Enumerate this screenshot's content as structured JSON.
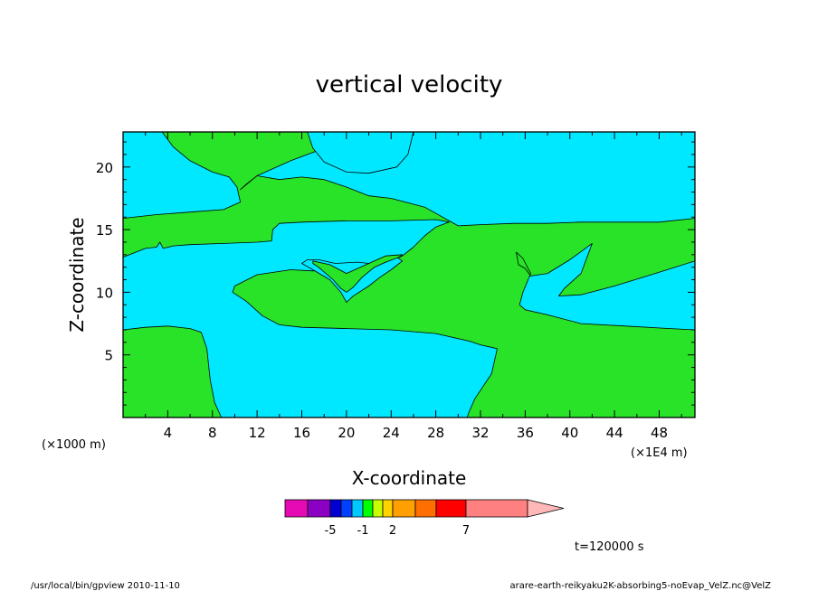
{
  "chart_data": {
    "type": "contour",
    "title": "vertical velocity",
    "xlabel": "X-coordinate",
    "ylabel": "Z-coordinate",
    "x_unit_left": "(×1000 m)",
    "x_unit_right": "(×1E4 m)",
    "xlim": [
      0,
      51.2
    ],
    "ylim": [
      0,
      22.8
    ],
    "x_ticks": [
      4,
      8,
      12,
      16,
      20,
      24,
      28,
      32,
      36,
      40,
      44,
      48
    ],
    "y_ticks": [
      5,
      10,
      15,
      20
    ],
    "background_color": "#00e8ff",
    "regions": [
      {
        "color": "#28e328",
        "points": [
          [
            3.5,
            22.8
          ],
          [
            4.5,
            21.6
          ],
          [
            6,
            20.5
          ],
          [
            8,
            19.6
          ],
          [
            9.5,
            19.2
          ],
          [
            10.2,
            18.4
          ],
          [
            10.5,
            17.2
          ],
          [
            9,
            16.6
          ],
          [
            6,
            16.4
          ],
          [
            3,
            16.2
          ],
          [
            0,
            15.9
          ],
          [
            0,
            12.8
          ],
          [
            2,
            13.5
          ],
          [
            3,
            13.6
          ],
          [
            3.3,
            14
          ],
          [
            3.6,
            13.5
          ],
          [
            4.5,
            13.7
          ],
          [
            6,
            13.8
          ],
          [
            9,
            13.9
          ],
          [
            12,
            14
          ],
          [
            13.3,
            14.1
          ],
          [
            13.4,
            15
          ],
          [
            14,
            15.5
          ],
          [
            16,
            15.6
          ],
          [
            20,
            15.7
          ],
          [
            24,
            15.7
          ],
          [
            28,
            15.8
          ],
          [
            29.2,
            15.6
          ],
          [
            28,
            15.2
          ],
          [
            27,
            14.5
          ],
          [
            26,
            13.6
          ],
          [
            25,
            12.9
          ],
          [
            24.2,
            12.6
          ],
          [
            23,
            12.4
          ],
          [
            21,
            12.1
          ],
          [
            19,
            11.9
          ],
          [
            17,
            11.7
          ],
          [
            15,
            11.8
          ],
          [
            12,
            11.4
          ],
          [
            10,
            10.5
          ],
          [
            9.8,
            10
          ],
          [
            11,
            9.3
          ],
          [
            12.5,
            8.1
          ],
          [
            14,
            7.4
          ],
          [
            16,
            7.2
          ],
          [
            20,
            7.1
          ],
          [
            24,
            7
          ],
          [
            28,
            6.7
          ],
          [
            31,
            6.1
          ],
          [
            32,
            5.8
          ],
          [
            33.5,
            5.5
          ],
          [
            33,
            3.5
          ],
          [
            31.5,
            1.5
          ],
          [
            31,
            0.5
          ],
          [
            30.8,
            0
          ],
          [
            51.2,
            0
          ],
          [
            51.2,
            7
          ],
          [
            49,
            7.1
          ],
          [
            45,
            7.3
          ],
          [
            41,
            7.5
          ],
          [
            38,
            8.2
          ],
          [
            36,
            8.6
          ],
          [
            35.5,
            9
          ],
          [
            35.8,
            10
          ],
          [
            36.5,
            11.5
          ],
          [
            35.8,
            12.7
          ],
          [
            35.2,
            13.2
          ],
          [
            35.4,
            12.2
          ],
          [
            36,
            11.9
          ],
          [
            36.5,
            11.3
          ],
          [
            38,
            11.5
          ],
          [
            40,
            12.6
          ],
          [
            42,
            13.9
          ],
          [
            41,
            11.5
          ],
          [
            39.5,
            10.3
          ],
          [
            39,
            9.7
          ],
          [
            41,
            9.8
          ],
          [
            44,
            10.5
          ],
          [
            48,
            11.6
          ],
          [
            51.2,
            12.5
          ],
          [
            51.2,
            15.9
          ],
          [
            48,
            15.6
          ],
          [
            44,
            15.6
          ],
          [
            41,
            15.6
          ],
          [
            38,
            15.5
          ],
          [
            35,
            15.5
          ],
          [
            32,
            15.4
          ],
          [
            30,
            15.3
          ],
          [
            27,
            16.8
          ],
          [
            24,
            17.5
          ],
          [
            22,
            17.7
          ],
          [
            20,
            18.4
          ],
          [
            18,
            19
          ],
          [
            16,
            19.2
          ],
          [
            14,
            19
          ],
          [
            12,
            19.3
          ],
          [
            10.5,
            18.2
          ],
          [
            11,
            18.6
          ],
          [
            12,
            19.3
          ],
          [
            15,
            20.5
          ],
          [
            18,
            21.5
          ],
          [
            21,
            22.3
          ],
          [
            23,
            22.8
          ]
        ]
      },
      {
        "color": "#00e8ff",
        "points": [
          [
            16.5,
            22.8
          ],
          [
            17,
            21.5
          ],
          [
            18,
            20.4
          ],
          [
            20,
            19.6
          ],
          [
            22,
            19.5
          ],
          [
            24.5,
            20
          ],
          [
            25.5,
            21
          ],
          [
            26,
            22.8
          ]
        ]
      },
      {
        "color": "#28e328",
        "points": [
          [
            0,
            7
          ],
          [
            2,
            7.2
          ],
          [
            4,
            7.3
          ],
          [
            6,
            7.1
          ],
          [
            7,
            6.8
          ],
          [
            7.5,
            5.5
          ],
          [
            7.8,
            3
          ],
          [
            8.2,
            1.2
          ],
          [
            8.6,
            0.4
          ],
          [
            8.8,
            0
          ],
          [
            0,
            0
          ]
        ]
      },
      {
        "color": "#00e8ff",
        "points": [
          [
            16,
            12.3
          ],
          [
            17,
            11.8
          ],
          [
            18.5,
            11
          ],
          [
            19.5,
            10
          ],
          [
            20,
            9.2
          ],
          [
            20.6,
            9.7
          ],
          [
            22,
            10.5
          ],
          [
            23,
            11.2
          ],
          [
            24,
            11.8
          ],
          [
            25,
            12.5
          ],
          [
            24.5,
            12.8
          ],
          [
            23,
            12.2
          ],
          [
            21,
            12.4
          ],
          [
            19,
            12.3
          ],
          [
            17.5,
            12.6
          ],
          [
            16.5,
            12.6
          ]
        ]
      },
      {
        "color": "#28e328",
        "points": [
          [
            17,
            12.5
          ],
          [
            18.5,
            12.2
          ],
          [
            20,
            11.5
          ],
          [
            22,
            12.3
          ],
          [
            23.5,
            12.9
          ],
          [
            25,
            13
          ],
          [
            24.7,
            12.8
          ],
          [
            23.5,
            12.4
          ],
          [
            22.5,
            12
          ],
          [
            21.4,
            11.2
          ],
          [
            20.6,
            10.4
          ],
          [
            20,
            10
          ],
          [
            19.5,
            10.3
          ],
          [
            18.8,
            11
          ],
          [
            17.5,
            12
          ],
          [
            17,
            12.3
          ]
        ]
      }
    ],
    "colorbar": {
      "colors": [
        "#e60ab4",
        "#8b00c2",
        "#0000d2",
        "#0040ff",
        "#00c8ff",
        "#00ff00",
        "#c8ff00",
        "#ffd200",
        "#ffa000",
        "#ff6e00",
        "#ff0000",
        "#ff8080",
        "#ffb8b8"
      ],
      "tick_labels": [
        "-5",
        "-1",
        "2",
        "7"
      ]
    },
    "time_label": "t=120000 s"
  },
  "footer": {
    "left": "/usr/local/bin/gpview   2010-11-10",
    "right": "arare-earth-reikyaku2K-absorbing5-noEvap_VelZ.nc@VelZ"
  }
}
